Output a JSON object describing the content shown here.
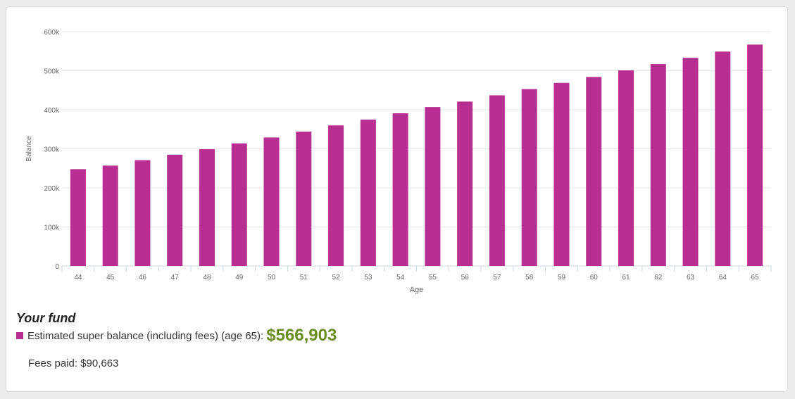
{
  "colors": {
    "bar": "#b82e91",
    "amount": "#6b8e23",
    "grid": "#e6e6e6",
    "axis": "#ccd6eb",
    "tick_text": "#666666"
  },
  "chart_data": {
    "type": "bar",
    "xlabel": "Age",
    "ylabel": "Balance",
    "ylim": [
      0,
      600000
    ],
    "yticks": [
      0,
      100000,
      200000,
      300000,
      400000,
      500000,
      600000
    ],
    "ytick_labels": [
      "0",
      "100k",
      "200k",
      "300k",
      "400k",
      "500k",
      "600k"
    ],
    "grid": true,
    "categories": [
      "44",
      "45",
      "46",
      "47",
      "48",
      "49",
      "50",
      "51",
      "52",
      "53",
      "54",
      "55",
      "56",
      "57",
      "58",
      "59",
      "60",
      "61",
      "62",
      "63",
      "64",
      "65"
    ],
    "series": [
      {
        "values": [
          248000,
          257000,
          271000,
          285000,
          299000,
          314000,
          329000,
          344000,
          360000,
          375000,
          391000,
          407000,
          421000,
          437000,
          453000,
          469000,
          484000,
          501000,
          517000,
          533000,
          549000,
          566903
        ]
      }
    ]
  },
  "fund": {
    "title": "Your fund",
    "legend_label": "Estimated super balance (including fees) (age 65):",
    "estimated_balance": "$566,903",
    "fees_label": "Fees paid: $90,663"
  }
}
